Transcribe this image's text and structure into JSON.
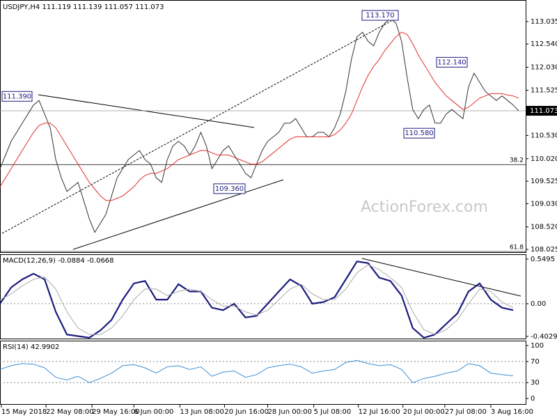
{
  "chart_data": [
    {
      "type": "line",
      "title": "USDJPY,H4",
      "ohlc": [
        111.119,
        111.139,
        111.057,
        111.073
      ],
      "watermark": "ActionForex.com",
      "xlim": [
        0,
        377
      ],
      "x": [
        0,
        4,
        8,
        12,
        16,
        20,
        24,
        28,
        32,
        36,
        40,
        44,
        48,
        52,
        56,
        60,
        64,
        68,
        72,
        76,
        80,
        84,
        88,
        92,
        96,
        100,
        104,
        108,
        112,
        116,
        120,
        124,
        128,
        132,
        136,
        140,
        144,
        148,
        152,
        156,
        160,
        164,
        168,
        172,
        176,
        180,
        184,
        188,
        192,
        196,
        200,
        204,
        208,
        212,
        216,
        220,
        224,
        228,
        232,
        236,
        240,
        244,
        248,
        252,
        256,
        260,
        264,
        268,
        272,
        276,
        280,
        284,
        288,
        292,
        296,
        300,
        304,
        308,
        312,
        316,
        320,
        324,
        328,
        332,
        336,
        340,
        344,
        348,
        352,
        356,
        360,
        364,
        368,
        372
      ],
      "series": [
        {
          "color": "#333333",
          "values": [
            109.8,
            110.1,
            110.4,
            110.6,
            110.8,
            111.0,
            111.2,
            111.3,
            111.0,
            110.7,
            110.0,
            109.6,
            109.3,
            109.4,
            109.5,
            109.1,
            108.7,
            108.4,
            108.6,
            108.8,
            109.2,
            109.6,
            109.8,
            110.0,
            110.1,
            110.2,
            110.0,
            109.9,
            109.6,
            109.5,
            110.0,
            110.3,
            110.4,
            110.3,
            110.1,
            110.3,
            110.6,
            110.3,
            109.8,
            110.0,
            110.2,
            110.3,
            110.1,
            109.9,
            109.7,
            109.6,
            109.9,
            110.2,
            110.4,
            110.5,
            110.6,
            110.8,
            110.8,
            110.9,
            110.7,
            110.5,
            110.5,
            110.6,
            110.6,
            110.5,
            110.7,
            111.0,
            111.5,
            112.2,
            112.7,
            112.8,
            112.6,
            112.5,
            112.8,
            113.0,
            113.1,
            113.0,
            112.6,
            111.8,
            111.1,
            110.9,
            111.1,
            111.2,
            110.8,
            110.8,
            111.0,
            111.1,
            111.0,
            110.9,
            111.6,
            111.9,
            111.7,
            111.5,
            111.4,
            111.3,
            111.4,
            111.3,
            111.2,
            111.07
          ]
        },
        {
          "color": "#e0302a",
          "values": [
            109.4,
            109.6,
            109.8,
            110.0,
            110.2,
            110.4,
            110.6,
            110.75,
            110.8,
            110.8,
            110.7,
            110.5,
            110.3,
            110.1,
            109.9,
            109.7,
            109.5,
            109.35,
            109.2,
            109.1,
            109.1,
            109.15,
            109.2,
            109.3,
            109.4,
            109.55,
            109.65,
            109.7,
            109.7,
            109.75,
            109.8,
            109.9,
            110.0,
            110.05,
            110.1,
            110.15,
            110.2,
            110.2,
            110.15,
            110.1,
            110.1,
            110.1,
            110.05,
            110.0,
            109.95,
            109.9,
            109.9,
            109.95,
            110.05,
            110.15,
            110.25,
            110.35,
            110.45,
            110.5,
            110.5,
            110.5,
            110.5,
            110.5,
            110.5,
            110.5,
            110.55,
            110.65,
            110.8,
            111.0,
            111.3,
            111.6,
            111.85,
            112.05,
            112.2,
            112.4,
            112.55,
            112.7,
            112.8,
            112.75,
            112.55,
            112.3,
            112.1,
            111.9,
            111.7,
            111.55,
            111.4,
            111.3,
            111.2,
            111.1,
            111.15,
            111.25,
            111.35,
            111.4,
            111.45,
            111.45,
            111.45,
            111.42,
            111.4,
            111.35
          ]
        }
      ],
      "ylim": [
        107.964,
        113.493
      ],
      "yticks": [
        113.035,
        {
          "value": 112.54,
          "label": "112.540"
        },
        {
          "value": 112.03,
          "label": "112.030"
        },
        111.525,
        {
          "value": 110.53,
          "label": "110.530"
        },
        {
          "value": 110.02,
          "label": "110.020"
        },
        109.525,
        {
          "value": 109.03,
          "label": "109.030"
        },
        {
          "value": 108.52,
          "label": "108.520"
        },
        108.025
      ],
      "annotations": [
        {
          "value": 111.39,
          "label": "111.390"
        },
        {
          "value": 113.17,
          "label": "113.170"
        },
        {
          "value": 112.14,
          "label": "112.140"
        },
        {
          "value": 110.58,
          "label": "110.580"
        },
        {
          "value": 109.36,
          "label": "109.360"
        }
      ],
      "levels": [
        {
          "value": 109.89,
          "label": "38.2"
        },
        {
          "value": 107.98,
          "label": "61.8"
        }
      ]
    },
    {
      "type": "line",
      "title": "MACD(12,26,9)",
      "printed_values": [
        -0.0884,
        -0.0668
      ],
      "xlim": [
        0,
        377
      ],
      "x": [
        0,
        8,
        16,
        24,
        32,
        40,
        48,
        56,
        64,
        72,
        80,
        88,
        96,
        104,
        112,
        120,
        128,
        136,
        144,
        152,
        160,
        168,
        176,
        184,
        192,
        200,
        208,
        216,
        224,
        232,
        240,
        248,
        256,
        264,
        272,
        280,
        288,
        296,
        304,
        312,
        320,
        328,
        336,
        344,
        352,
        360,
        368
      ],
      "series": [
        {
          "color": "#1a1a80",
          "values": [
            0.0,
            0.2,
            0.3,
            0.37,
            0.3,
            -0.1,
            -0.38,
            -0.4,
            -0.42,
            -0.33,
            -0.2,
            0.05,
            0.25,
            0.28,
            0.05,
            0.05,
            0.24,
            0.15,
            0.15,
            -0.05,
            -0.08,
            0.0,
            -0.17,
            -0.15,
            0.0,
            0.15,
            0.3,
            0.22,
            0.0,
            0.02,
            0.08,
            0.3,
            0.52,
            0.5,
            0.32,
            0.28,
            0.1,
            -0.3,
            -0.42,
            -0.38,
            -0.25,
            -0.12,
            0.15,
            0.25,
            0.05,
            -0.05,
            -0.08
          ]
        },
        {
          "color": "#aaaaaa",
          "values": [
            0.05,
            0.12,
            0.22,
            0.3,
            0.33,
            0.18,
            -0.1,
            -0.3,
            -0.38,
            -0.38,
            -0.3,
            -0.15,
            0.05,
            0.18,
            0.18,
            0.1,
            0.15,
            0.18,
            0.15,
            0.05,
            -0.03,
            -0.03,
            -0.1,
            -0.14,
            -0.08,
            0.05,
            0.18,
            0.24,
            0.12,
            0.05,
            0.05,
            0.18,
            0.38,
            0.48,
            0.42,
            0.32,
            0.2,
            -0.1,
            -0.32,
            -0.38,
            -0.32,
            -0.2,
            0.0,
            0.18,
            0.15,
            0.02,
            -0.05
          ]
        }
      ],
      "ylim": [
        -0.43,
        0.6
      ],
      "yticks": [
        0.5495,
        {
          "value": 0,
          "label": "0.00"
        },
        -0.4029
      ],
      "levels": [
        0
      ]
    },
    {
      "type": "line",
      "title": "RSI(14)",
      "printed_values": [
        42.9902
      ],
      "xlim": [
        0,
        377
      ],
      "x": [
        0,
        8,
        16,
        24,
        32,
        40,
        48,
        56,
        64,
        72,
        80,
        88,
        96,
        104,
        112,
        120,
        128,
        136,
        144,
        152,
        160,
        168,
        176,
        184,
        192,
        200,
        208,
        216,
        224,
        232,
        240,
        248,
        256,
        264,
        272,
        280,
        288,
        296,
        304,
        312,
        320,
        328,
        336,
        344,
        352,
        360,
        368
      ],
      "series": [
        {
          "color": "#3c8fd8",
          "values": [
            55,
            62,
            66,
            65,
            58,
            40,
            35,
            42,
            30,
            38,
            48,
            62,
            64,
            58,
            48,
            60,
            62,
            55,
            60,
            42,
            50,
            52,
            40,
            45,
            58,
            62,
            65,
            60,
            48,
            52,
            55,
            68,
            72,
            66,
            62,
            64,
            55,
            30,
            38,
            42,
            48,
            52,
            66,
            62,
            48,
            45,
            43
          ]
        }
      ],
      "ylim": [
        -10.5,
        108
      ],
      "yticks": [
        100,
        70,
        30,
        0
      ],
      "levels": [
        70,
        30
      ],
      "xticks": [
        {
          "value": 1,
          "label": "15 May 2018"
        },
        {
          "value": 33,
          "label": "22 May 08:00"
        },
        {
          "value": 66,
          "label": "29 May 16:00"
        },
        {
          "value": 96,
          "label": "6 Jun 00:00"
        },
        {
          "value": 129,
          "label": "13 Jun 08:00"
        },
        {
          "value": 161,
          "label": "20 Jun 16:00"
        },
        {
          "value": 192,
          "label": "28 Jun 00:00"
        },
        {
          "value": 225,
          "label": "5 Jul 08:00"
        },
        {
          "value": 257,
          "label": "12 Jul 16:00"
        },
        {
          "value": 289,
          "label": "20 Jul 00:00"
        },
        {
          "value": 319,
          "label": "27 Jul 08:00"
        },
        {
          "value": 352,
          "label": "3 Aug 16:00"
        }
      ]
    }
  ]
}
